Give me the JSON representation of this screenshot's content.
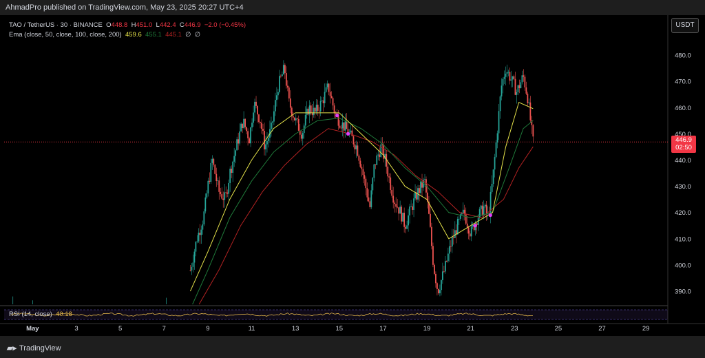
{
  "header": {
    "published_text": "AhmadPro published on TradingView.com, May 23, 2025 20:27 UTC+4"
  },
  "legend": {
    "symbol": "TAO / TetherUS · 30 · BINANCE",
    "open_label": "O",
    "open": "448.8",
    "high_label": "H",
    "high": "451.0",
    "low_label": "L",
    "low": "442.4",
    "close_label": "C",
    "close": "446.9",
    "change": "−2.0 (−0.45%)",
    "ema_label": "Ema (close, 50, close, 100, close, 200)",
    "ema50": "459.6",
    "ema100": "455.1",
    "ema200": "445.1",
    "null_a": "∅",
    "null_b": "∅"
  },
  "rsi": {
    "label": "RSI (14, close)",
    "value": "40.18"
  },
  "price_scale": {
    "currency": "USDT",
    "current_price": "446.9",
    "countdown": "02:50"
  },
  "footer": {
    "brand": "TradingView"
  },
  "colors": {
    "up": "#26a69a",
    "down": "#ef5350",
    "ema50": "#e5e24a",
    "ema100": "#1f7a3a",
    "ema200": "#b22222",
    "marker": "#e040fb"
  },
  "chart_data": {
    "type": "candlestick",
    "y_ticks": [
      480,
      470,
      460,
      450,
      440,
      430,
      420,
      410,
      400,
      390
    ],
    "ylim": [
      385,
      490
    ],
    "x_ticks": [
      "May",
      "3",
      "5",
      "7",
      "9",
      "11",
      "13",
      "15",
      "17",
      "19",
      "21",
      "23",
      "25",
      "27",
      "29"
    ],
    "x_tick_days": [
      1,
      3,
      5,
      7,
      9,
      11,
      13,
      15,
      17,
      19,
      21,
      23,
      25,
      27,
      29
    ],
    "xlim": [
      -0.3,
      30
    ],
    "current_price_line": 446.9,
    "price_path": [
      [
        8.2,
        398
      ],
      [
        8.5,
        410
      ],
      [
        8.8,
        418
      ],
      [
        9.0,
        430
      ],
      [
        9.2,
        440
      ],
      [
        9.5,
        428
      ],
      [
        9.8,
        425
      ],
      [
        10.0,
        435
      ],
      [
        10.3,
        445
      ],
      [
        10.6,
        455
      ],
      [
        10.9,
        448
      ],
      [
        11.1,
        462
      ],
      [
        11.4,
        455
      ],
      [
        11.6,
        445
      ],
      [
        11.9,
        452
      ],
      [
        12.2,
        468
      ],
      [
        12.5,
        475
      ],
      [
        12.7,
        462
      ],
      [
        13.0,
        455
      ],
      [
        13.3,
        450
      ],
      [
        13.6,
        460
      ],
      [
        13.9,
        458
      ],
      [
        14.2,
        462
      ],
      [
        14.5,
        468
      ],
      [
        14.8,
        458
      ],
      [
        15.0,
        455
      ],
      [
        15.3,
        452
      ],
      [
        15.6,
        448
      ],
      [
        15.8,
        445
      ],
      [
        16.0,
        438
      ],
      [
        16.2,
        430
      ],
      [
        16.4,
        422
      ],
      [
        16.6,
        438
      ],
      [
        16.9,
        445
      ],
      [
        17.1,
        440
      ],
      [
        17.3,
        432
      ],
      [
        17.5,
        425
      ],
      [
        17.8,
        420
      ],
      [
        18.0,
        415
      ],
      [
        18.3,
        422
      ],
      [
        18.6,
        428
      ],
      [
        18.9,
        432
      ],
      [
        19.1,
        418
      ],
      [
        19.3,
        400
      ],
      [
        19.5,
        390
      ],
      [
        19.8,
        398
      ],
      [
        20.1,
        408
      ],
      [
        20.4,
        415
      ],
      [
        20.7,
        420
      ],
      [
        21.0,
        412
      ],
      [
        21.3,
        418
      ],
      [
        21.6,
        422
      ],
      [
        21.8,
        418
      ],
      [
        22.0,
        432
      ],
      [
        22.2,
        450
      ],
      [
        22.4,
        468
      ],
      [
        22.6,
        475
      ],
      [
        22.9,
        470
      ],
      [
        23.1,
        466
      ],
      [
        23.4,
        472
      ],
      [
        23.6,
        464
      ],
      [
        23.8,
        450
      ],
      [
        23.85,
        446.9
      ]
    ],
    "ema50": [
      [
        8.2,
        390
      ],
      [
        9.0,
        405
      ],
      [
        10.0,
        425
      ],
      [
        11.0,
        440
      ],
      [
        12.0,
        452
      ],
      [
        13.0,
        458
      ],
      [
        14.0,
        458
      ],
      [
        15.0,
        458
      ],
      [
        16.0,
        450
      ],
      [
        17.0,
        442
      ],
      [
        18.0,
        430
      ],
      [
        19.0,
        425
      ],
      [
        20.0,
        410
      ],
      [
        21.0,
        415
      ],
      [
        22.0,
        420
      ],
      [
        22.6,
        445
      ],
      [
        23.2,
        462
      ],
      [
        23.85,
        459.6
      ]
    ],
    "ema100": [
      [
        8.3,
        385
      ],
      [
        9.0,
        398
      ],
      [
        10.0,
        418
      ],
      [
        11.0,
        432
      ],
      [
        12.0,
        443
      ],
      [
        13.0,
        450
      ],
      [
        14.0,
        455
      ],
      [
        15.0,
        456
      ],
      [
        16.0,
        452
      ],
      [
        17.0,
        446
      ],
      [
        18.0,
        437
      ],
      [
        19.0,
        430
      ],
      [
        20.0,
        420
      ],
      [
        21.0,
        418
      ],
      [
        22.0,
        420
      ],
      [
        22.8,
        438
      ],
      [
        23.4,
        452
      ],
      [
        23.85,
        455.1
      ]
    ],
    "ema200": [
      [
        8.6,
        385
      ],
      [
        9.5,
        398
      ],
      [
        10.5,
        415
      ],
      [
        11.5,
        428
      ],
      [
        12.5,
        438
      ],
      [
        13.5,
        446
      ],
      [
        14.5,
        452
      ],
      [
        15.5,
        450
      ],
      [
        16.5,
        447
      ],
      [
        17.5,
        442
      ],
      [
        18.5,
        434
      ],
      [
        19.5,
        428
      ],
      [
        20.5,
        420
      ],
      [
        21.5,
        418
      ],
      [
        22.5,
        425
      ],
      [
        23.2,
        437
      ],
      [
        23.85,
        445.1
      ]
    ],
    "markers": [
      {
        "day": 14.9,
        "price": 457
      },
      {
        "day": 15.4,
        "price": 450
      },
      {
        "day": 21.2,
        "price": 415
      },
      {
        "day": 21.9,
        "price": 419
      }
    ],
    "rsi_value": 40.18
  }
}
